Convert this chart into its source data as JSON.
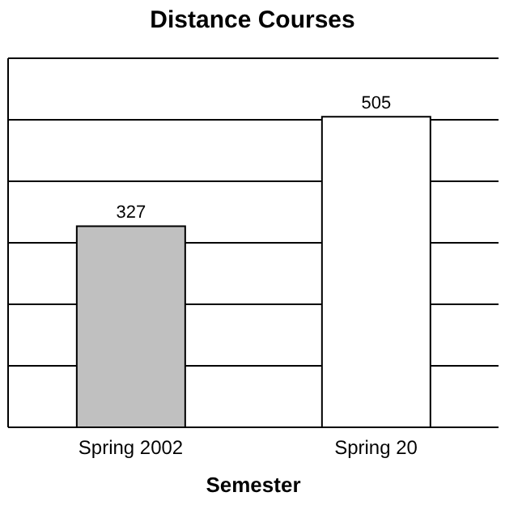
{
  "chart_data": {
    "type": "bar",
    "title": "Distance Courses",
    "xlabel": "Semester",
    "categories": [
      "Spring 2002",
      "Spring 20"
    ],
    "values": [
      327,
      505
    ],
    "colors": [
      "#c0c0c0",
      "#ffffff"
    ],
    "ylim": [
      0,
      600
    ],
    "yticks": [
      {
        "value": 0,
        "label": null
      },
      {
        "value": 100,
        "label": null
      },
      {
        "value": 200,
        "label": null
      },
      {
        "value": 300,
        "label": null
      },
      {
        "value": 400,
        "label": null
      },
      {
        "value": 500,
        "label": null
      },
      {
        "value": 600,
        "label": null
      }
    ],
    "grid": "y",
    "tick_labels": "x",
    "data_labels": true
  }
}
